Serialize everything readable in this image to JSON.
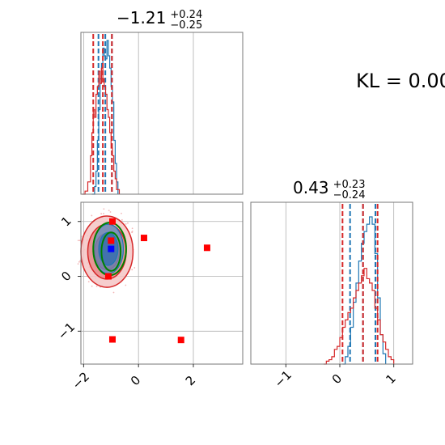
{
  "kl_text": "KL = 0.00",
  "panels": {
    "p1": {
      "title_value": "−1.21",
      "title_sup": "+0.24",
      "title_sub": "−0.25"
    },
    "p3": {
      "title_value": "0.43",
      "title_sup": "+0.23",
      "title_sub": "−0.24"
    }
  },
  "colors": {
    "blue": "#1f77b4",
    "red": "#d62728",
    "green": "#008000",
    "marker_red": "#ff0000",
    "marker_blue": "#0000ff",
    "grid": "#b0b0b0"
  },
  "chart_data": [
    {
      "type": "histogram",
      "panel": "x-marginal",
      "xlim": [
        -2.1,
        3.8
      ],
      "series": [
        {
          "color": "blue",
          "quantile_lines": [
            -1.46,
            -1.21,
            -0.97
          ],
          "bins": [
            [
              -1.7,
              0.0
            ],
            [
              -1.6,
              0.05
            ],
            [
              -1.55,
              0.15
            ],
            [
              -1.5,
              0.35
            ],
            [
              -1.45,
              0.55
            ],
            [
              -1.4,
              0.75
            ],
            [
              -1.35,
              0.85
            ],
            [
              -1.3,
              0.95
            ],
            [
              -1.25,
              0.9
            ],
            [
              -1.2,
              0.88
            ],
            [
              -1.15,
              1.0
            ],
            [
              -1.1,
              0.9
            ],
            [
              -1.05,
              0.82
            ],
            [
              -1.0,
              0.7
            ],
            [
              -0.95,
              0.6
            ],
            [
              -0.9,
              0.35
            ],
            [
              -0.85,
              0.2
            ],
            [
              -0.8,
              0.08
            ],
            [
              -0.75,
              0.0
            ]
          ]
        },
        {
          "color": "red",
          "quantile_lines": [
            -1.65,
            -1.3,
            -0.97
          ],
          "bins": [
            [
              -2.05,
              0.0
            ],
            [
              -1.95,
              0.02
            ],
            [
              -1.85,
              0.08
            ],
            [
              -1.75,
              0.25
            ],
            [
              -1.7,
              0.4
            ],
            [
              -1.65,
              0.55
            ],
            [
              -1.6,
              0.5
            ],
            [
              -1.55,
              0.65
            ],
            [
              -1.5,
              0.7
            ],
            [
              -1.45,
              0.8
            ],
            [
              -1.4,
              0.72
            ],
            [
              -1.35,
              0.82
            ],
            [
              -1.3,
              0.75
            ],
            [
              -1.25,
              0.7
            ],
            [
              -1.2,
              0.65
            ],
            [
              -1.15,
              0.55
            ],
            [
              -1.1,
              0.5
            ],
            [
              -1.05,
              0.4
            ],
            [
              -1.0,
              0.3
            ],
            [
              -0.95,
              0.25
            ],
            [
              -0.9,
              0.15
            ],
            [
              -0.85,
              0.1
            ],
            [
              -0.8,
              0.03
            ],
            [
              -0.7,
              0.0
            ]
          ]
        }
      ]
    },
    {
      "type": "histogram",
      "panel": "y-marginal",
      "xlim": [
        -1.65,
        1.35
      ],
      "xticks": [
        -1,
        0,
        1
      ],
      "series": [
        {
          "color": "blue",
          "quantile_lines": [
            0.19,
            0.43,
            0.66
          ],
          "bins": [
            [
              0.05,
              0.0
            ],
            [
              0.1,
              0.05
            ],
            [
              0.15,
              0.12
            ],
            [
              0.2,
              0.25
            ],
            [
              0.25,
              0.42
            ],
            [
              0.3,
              0.55
            ],
            [
              0.35,
              0.7
            ],
            [
              0.4,
              0.82
            ],
            [
              0.45,
              0.9
            ],
            [
              0.5,
              0.95
            ],
            [
              0.55,
              1.0
            ],
            [
              0.6,
              0.95
            ],
            [
              0.65,
              0.75
            ],
            [
              0.7,
              0.45
            ],
            [
              0.75,
              0.2
            ],
            [
              0.8,
              0.07
            ],
            [
              0.85,
              0.0
            ]
          ]
        },
        {
          "color": "red",
          "quantile_lines": [
            0.05,
            0.43,
            0.7
          ],
          "bins": [
            [
              -0.3,
              0.0
            ],
            [
              -0.25,
              0.02
            ],
            [
              -0.2,
              0.03
            ],
            [
              -0.15,
              0.05
            ],
            [
              -0.1,
              0.1
            ],
            [
              -0.05,
              0.12
            ],
            [
              0.0,
              0.18
            ],
            [
              0.05,
              0.25
            ],
            [
              0.1,
              0.3
            ],
            [
              0.15,
              0.35
            ],
            [
              0.2,
              0.38
            ],
            [
              0.25,
              0.45
            ],
            [
              0.3,
              0.5
            ],
            [
              0.35,
              0.55
            ],
            [
              0.4,
              0.6
            ],
            [
              0.45,
              0.65
            ],
            [
              0.5,
              0.58
            ],
            [
              0.55,
              0.55
            ],
            [
              0.6,
              0.5
            ],
            [
              0.65,
              0.38
            ],
            [
              0.7,
              0.3
            ],
            [
              0.75,
              0.2
            ],
            [
              0.8,
              0.15
            ],
            [
              0.85,
              0.1
            ],
            [
              0.9,
              0.05
            ],
            [
              0.95,
              0.03
            ],
            [
              1.0,
              0.0
            ]
          ]
        }
      ]
    },
    {
      "type": "scatter",
      "panel": "joint",
      "xlim": [
        -2.1,
        3.8
      ],
      "ylim": [
        -1.6,
        1.35
      ],
      "xticks": [
        -2,
        0,
        2
      ],
      "yticks": [
        -1,
        0,
        1
      ],
      "red_markers": [
        [
          -0.95,
          1.0
        ],
        [
          -1.0,
          0.65
        ],
        [
          -1.1,
          0.0
        ],
        [
          0.2,
          0.7
        ],
        [
          2.5,
          0.52
        ],
        [
          -0.95,
          -1.15
        ],
        [
          1.55,
          -1.16
        ]
      ],
      "blue_marker": [
        -1.0,
        0.5
      ],
      "red_contours": [
        {
          "cx": -1.15,
          "cy": 0.45,
          "rx": 0.95,
          "ry": 0.65
        },
        {
          "cx": -1.15,
          "cy": 0.45,
          "rx": 0.7,
          "ry": 0.5
        },
        {
          "cx": -1.15,
          "cy": 0.45,
          "rx": 0.45,
          "ry": 0.33
        }
      ],
      "blue_contours": [
        {
          "cx": -1.1,
          "cy": 0.5,
          "rx": 0.55,
          "ry": 0.45
        },
        {
          "cx": -1.1,
          "cy": 0.5,
          "rx": 0.35,
          "ry": 0.3
        }
      ],
      "green_contours": [
        {
          "cx": -1.05,
          "cy": 0.5,
          "rx": 0.6,
          "ry": 0.48
        },
        {
          "cx": -1.0,
          "cy": 0.45,
          "rx": 0.35,
          "ry": 0.35
        }
      ]
    }
  ]
}
